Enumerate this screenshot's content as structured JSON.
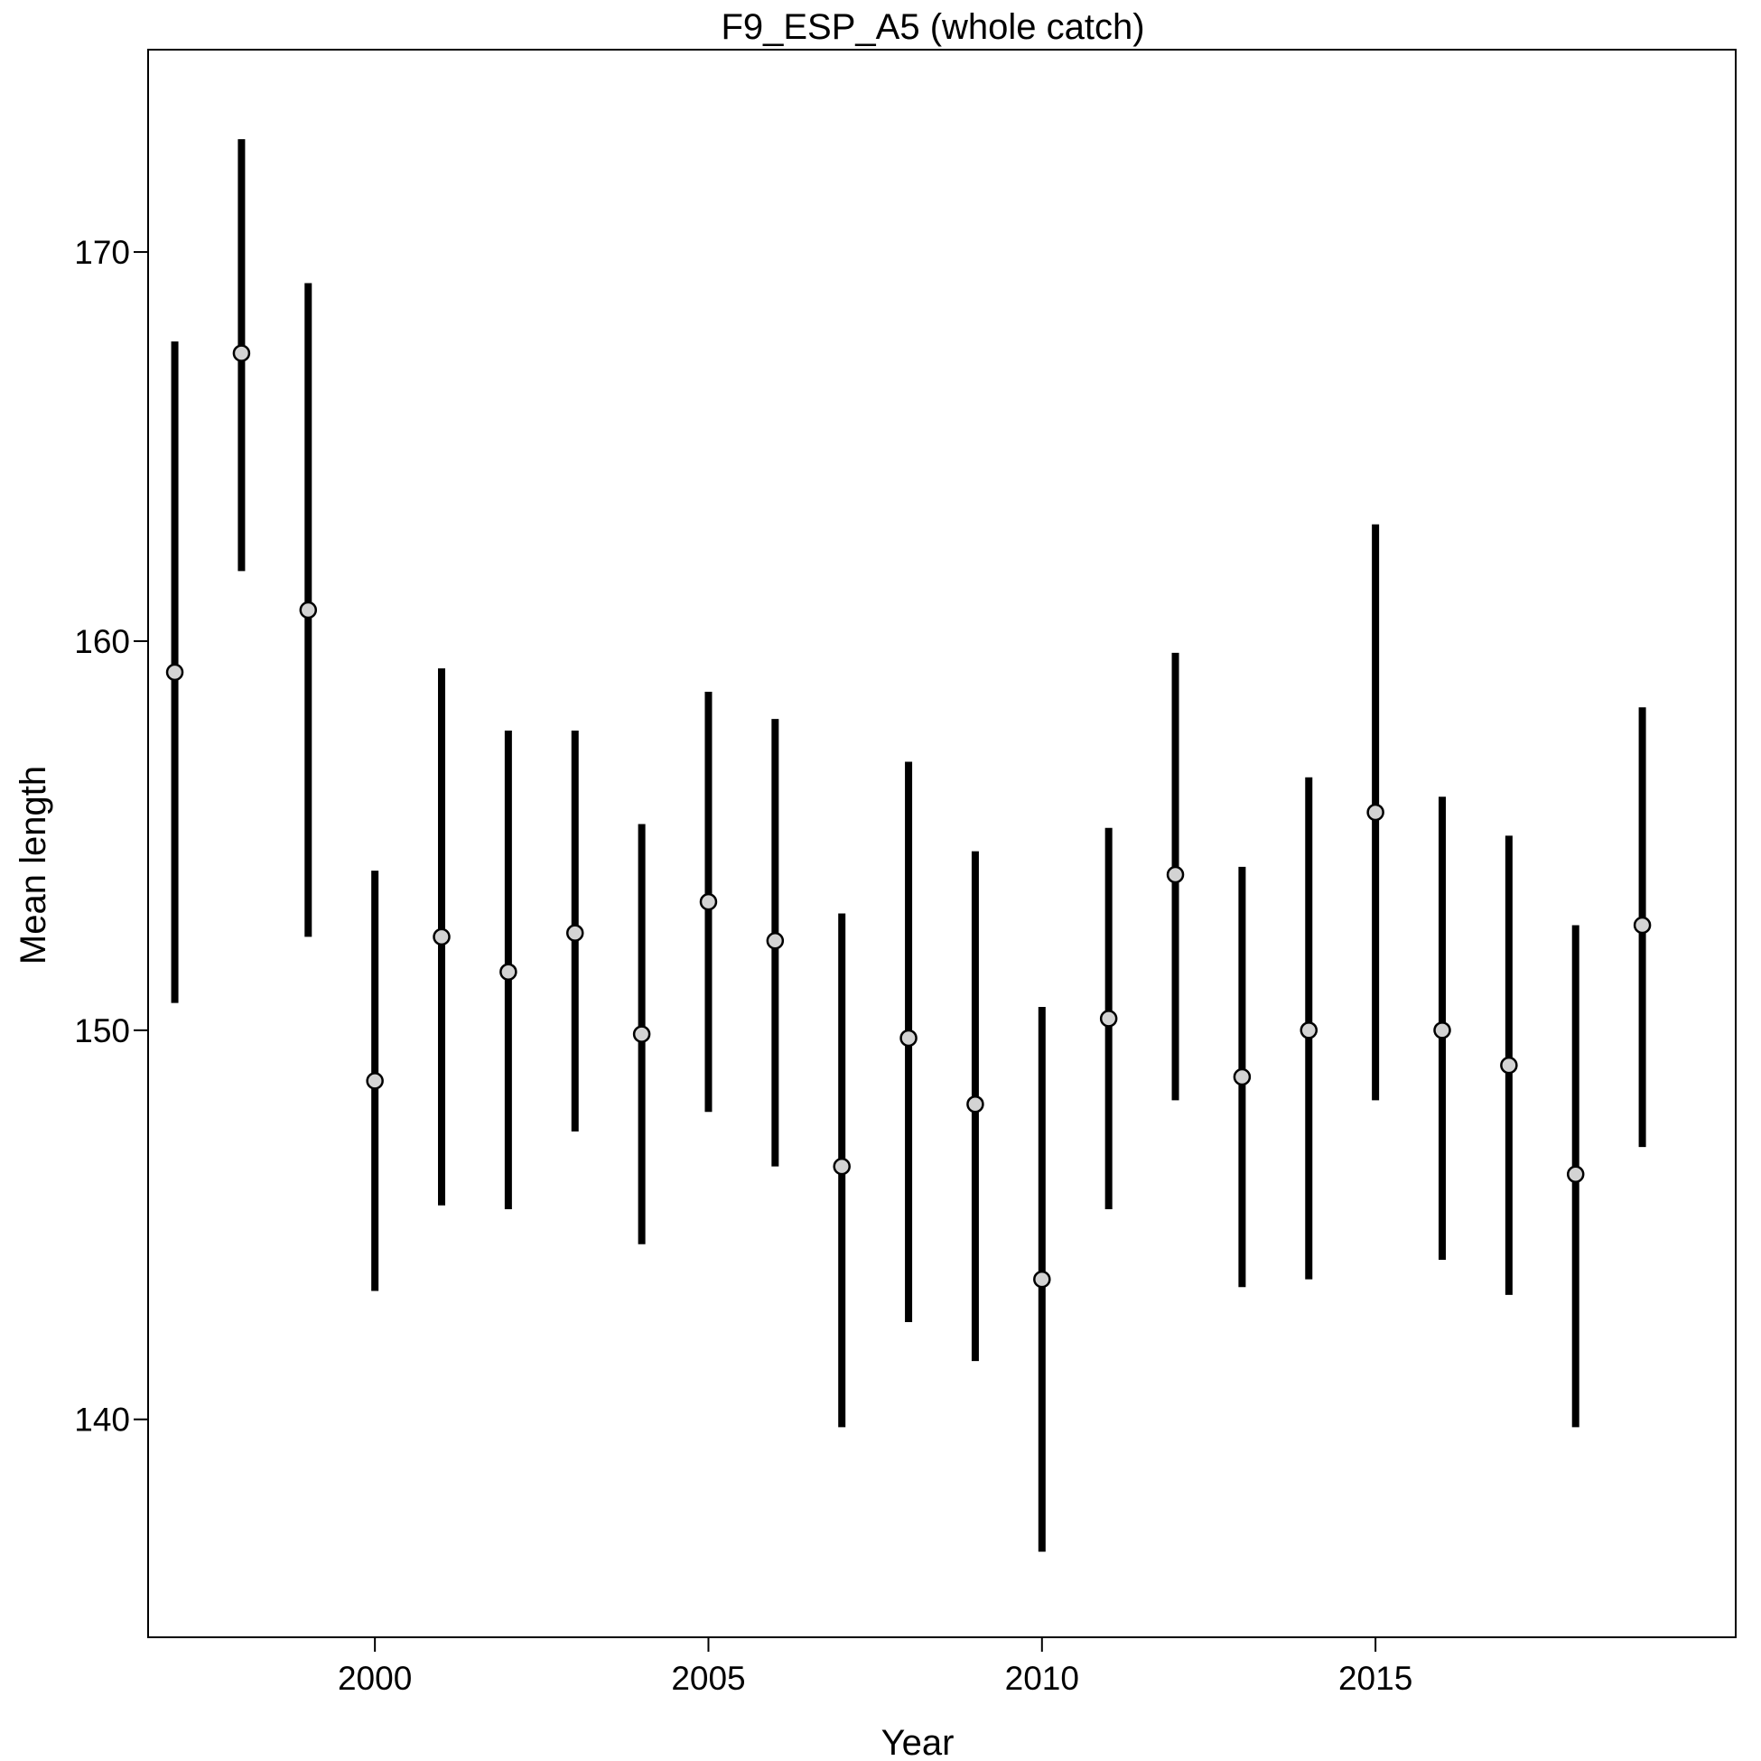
{
  "chart_data": {
    "type": "scatter",
    "title": "F9_ESP_A5 (whole catch)",
    "xlabel": "Year",
    "ylabel": "Mean length",
    "xlim": [
      1996.6,
      2020.4
    ],
    "ylim": [
      134.4,
      175.2
    ],
    "x_ticks": [
      2000,
      2005,
      2010,
      2015
    ],
    "y_ticks": [
      140,
      150,
      160,
      170
    ],
    "grid": false,
    "legend": "none",
    "colors": {
      "bar": "#000000",
      "point_fill": "#d3d3d3",
      "point_stroke": "#000000",
      "frame": "#000000"
    },
    "series": [
      {
        "x": [
          1997,
          1998,
          1999,
          2000,
          2001,
          2002,
          2003,
          2004,
          2005,
          2006,
          2007,
          2008,
          2009,
          2010,
          2011,
          2012,
          2013,
          2014,
          2015,
          2016,
          2017,
          2018,
          2019
        ],
        "y": [
          159.2,
          167.4,
          160.8,
          148.7,
          152.4,
          151.5,
          152.5,
          149.9,
          153.3,
          152.3,
          146.5,
          149.8,
          148.1,
          143.6,
          150.3,
          154.0,
          148.8,
          150.0,
          155.6,
          150.0,
          149.1,
          146.3,
          152.7
        ],
        "lower": [
          150.7,
          161.8,
          152.4,
          143.3,
          145.5,
          145.4,
          147.4,
          144.5,
          147.9,
          146.5,
          139.8,
          142.5,
          141.5,
          136.6,
          145.4,
          148.2,
          143.4,
          143.6,
          148.2,
          144.1,
          143.2,
          139.8,
          147.0
        ],
        "upper": [
          167.7,
          172.9,
          169.2,
          154.1,
          159.3,
          157.7,
          157.7,
          155.3,
          158.7,
          158.0,
          153.0,
          156.9,
          154.6,
          150.6,
          155.2,
          159.7,
          154.2,
          156.5,
          163.0,
          156.0,
          155.0,
          152.7,
          158.3
        ]
      }
    ]
  }
}
